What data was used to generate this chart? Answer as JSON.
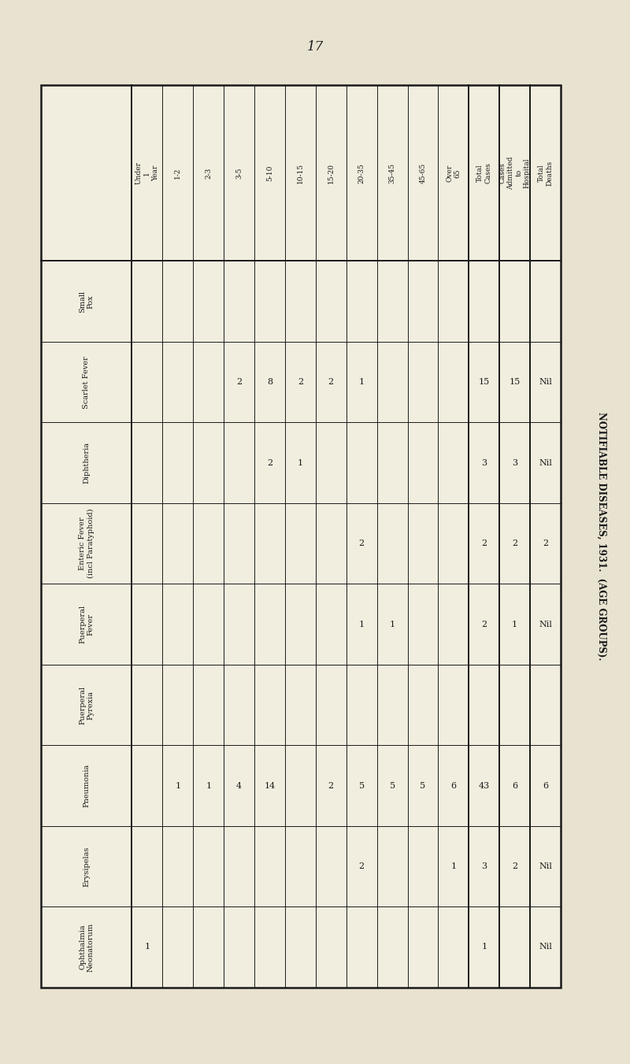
{
  "page_number": "17",
  "background_color": "#e8e2d0",
  "table_bg": "#f2eedf",
  "border_color": "#1a1a1a",
  "text_color": "#1a1a1a",
  "right_side_label": "NOTIFIABLE DISEASES, 1931.  (AGE GROUPS).",
  "row_headers": [
    "Small\nPox",
    "Scarlet Fever",
    "Diphtheria",
    "Enteric Fever\n(incl Paratyphoid)",
    "Puerperal\nFever",
    "Puerperal\nPyrexia",
    "Pneumonia",
    "Erysipelas",
    "Ophthalmia\nNeonatorum"
  ],
  "col_headers": [
    "Under\n1\nYear",
    "1-2",
    "2-3",
    "3-5",
    "5-10",
    "10-15",
    "15-20",
    "20-35",
    "35-45",
    "45-65",
    "Over\n65",
    "Total\nCases",
    "Cases\nAdmitted\nto\nHospital",
    "Total\nDeaths"
  ],
  "data": [
    [
      "",
      "",
      "",
      "",
      "",
      "",
      "",
      "",
      "",
      "",
      "",
      "",
      "",
      ""
    ],
    [
      "",
      "",
      "",
      "2",
      "8",
      "2",
      "2",
      "1",
      "",
      "",
      "",
      "15",
      "15",
      "Nil"
    ],
    [
      "",
      "",
      "",
      "",
      "2",
      "1",
      "",
      "",
      "",
      "",
      "",
      "3",
      "3",
      "Nil"
    ],
    [
      "",
      "",
      "",
      "",
      "",
      "",
      "",
      "2",
      "",
      "",
      "",
      "2",
      "2",
      "2"
    ],
    [
      "",
      "",
      "",
      "",
      "",
      "",
      "",
      "1",
      "1",
      "",
      "",
      "2",
      "1",
      "Nil"
    ],
    [
      "",
      "",
      "",
      "",
      "",
      "",
      "",
      "",
      "",
      "",
      "",
      "",
      "",
      ""
    ],
    [
      "",
      "1",
      "1",
      "4",
      "14",
      "",
      "2",
      "5",
      "5",
      "5",
      "6",
      "43",
      "6",
      "6"
    ],
    [
      "",
      "",
      "",
      "",
      "",
      "",
      "",
      "2",
      "",
      "",
      "1",
      "3",
      "2",
      "Nil"
    ],
    [
      "1",
      "",
      "",
      "",
      "",
      "",
      "",
      "",
      "",
      "",
      "",
      "1",
      "",
      "Nil"
    ]
  ],
  "lw_outer": 1.8,
  "lw_inner": 0.7,
  "lw_thick": 1.4
}
